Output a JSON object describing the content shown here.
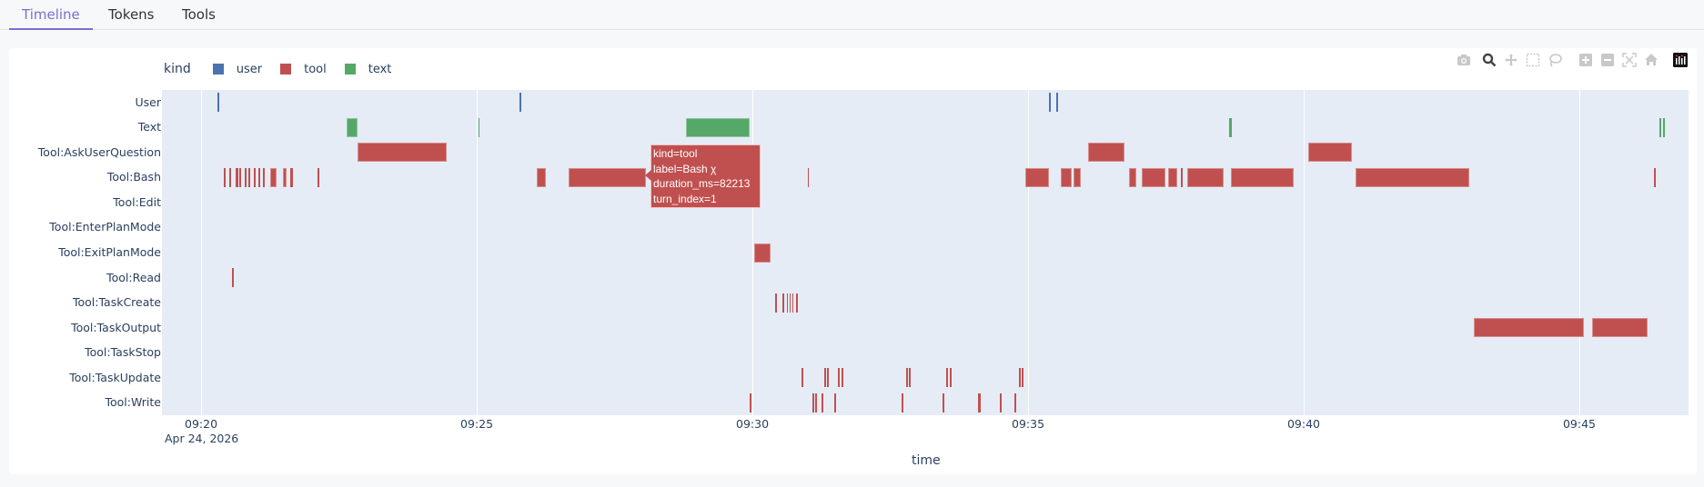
{
  "tabs": [
    {
      "label": "Timeline",
      "active": true
    },
    {
      "label": "Tokens",
      "active": false
    },
    {
      "label": "Tools",
      "active": false
    }
  ],
  "legend": {
    "title": "kind",
    "items": [
      {
        "label": "user",
        "color": "#4c72b0"
      },
      {
        "label": "tool",
        "color": "#c0504f"
      },
      {
        "label": "text",
        "color": "#55a868"
      }
    ]
  },
  "modebar": [
    "camera-icon",
    "zoom-icon",
    "pan-icon",
    "box-select-icon",
    "lasso-icon",
    "zoom-in-icon",
    "zoom-out-icon",
    "autoscale-icon",
    "reset-axes-icon",
    "plotly-logo-icon"
  ],
  "tooltip": {
    "lines": [
      "kind=tool",
      "label=Bash χ",
      "duration_ms=82213",
      "turn_index=1"
    ]
  },
  "chart_data": {
    "type": "timeline",
    "title": "",
    "xlabel": "time",
    "ylabel": "",
    "x_range_minutes_from_0920": [
      -0.71,
      26.98
    ],
    "x_ticks": [
      {
        "label": "09:20",
        "min": 0
      },
      {
        "label": "09:25",
        "min": 5
      },
      {
        "label": "09:30",
        "min": 10
      },
      {
        "label": "09:35",
        "min": 15
      },
      {
        "label": "09:40",
        "min": 20
      },
      {
        "label": "09:45",
        "min": 25
      }
    ],
    "x_date_label": "Apr 24, 2026",
    "categories": [
      "User",
      "Text",
      "Tool:AskUserQuestion",
      "Tool:Bash",
      "Tool:Edit",
      "Tool:EnterPlanMode",
      "Tool:ExitPlanMode",
      "Tool:Read",
      "Tool:TaskCreate",
      "Tool:TaskOutput",
      "Tool:TaskStop",
      "Tool:TaskUpdate",
      "Tool:Write"
    ],
    "series": [
      {
        "name": "user",
        "color": "#4c72b0",
        "rows": {
          "User": [
            [
              0.3,
              0.33
            ],
            [
              5.78,
              5.81
            ],
            [
              15.38,
              15.41
            ],
            [
              15.51,
              15.54
            ]
          ]
        }
      },
      {
        "name": "text",
        "color": "#55a868",
        "rows": {
          "Text": [
            [
              2.64,
              2.84
            ],
            [
              5.03,
              5.05
            ],
            [
              8.8,
              9.95
            ],
            [
              18.65,
              18.7
            ],
            [
              26.45,
              26.48
            ],
            [
              26.52,
              26.55
            ]
          ]
        }
      },
      {
        "name": "tool",
        "color": "#c0504f",
        "rows": {
          "Tool:AskUserQuestion": [
            [
              2.84,
              4.46
            ],
            [
              16.09,
              16.75
            ],
            [
              20.08,
              20.87
            ]
          ],
          "Tool:Bash": [
            [
              0.41,
              0.44
            ],
            [
              0.51,
              0.54
            ],
            [
              0.62,
              0.68
            ],
            [
              0.69,
              0.72
            ],
            [
              0.79,
              0.82
            ],
            [
              0.86,
              0.89
            ],
            [
              0.96,
              0.99
            ],
            [
              1.04,
              1.07
            ],
            [
              1.12,
              1.15
            ],
            [
              1.25,
              1.37
            ],
            [
              1.48,
              1.55
            ],
            [
              1.62,
              1.66
            ],
            [
              2.11,
              2.14
            ],
            [
              6.09,
              6.25
            ],
            [
              6.67,
              8.07
            ],
            [
              11.0,
              11.03
            ],
            [
              14.95,
              15.38
            ],
            [
              15.6,
              15.79
            ],
            [
              15.82,
              15.96
            ],
            [
              16.83,
              16.96
            ],
            [
              17.06,
              17.49
            ],
            [
              17.54,
              17.7
            ],
            [
              17.77,
              17.8
            ],
            [
              17.88,
              18.55
            ],
            [
              18.68,
              19.82
            ],
            [
              20.94,
              23.0
            ],
            [
              26.36,
              26.39
            ]
          ],
          "Tool:ExitPlanMode": [
            [
              10.03,
              10.33
            ]
          ],
          "Tool:Read": [
            [
              0.56,
              0.59
            ]
          ],
          "Tool:TaskCreate": [
            [
              10.41,
              10.44
            ],
            [
              10.54,
              10.57
            ],
            [
              10.62,
              10.65
            ],
            [
              10.67,
              10.7
            ],
            [
              10.72,
              10.75
            ],
            [
              10.79,
              10.82
            ]
          ],
          "Tool:TaskOutput": [
            [
              23.08,
              25.08
            ],
            [
              25.23,
              26.24
            ]
          ],
          "Tool:TaskUpdate": [
            [
              10.89,
              10.92
            ],
            [
              11.3,
              11.33
            ],
            [
              11.35,
              11.38
            ],
            [
              11.55,
              11.58
            ],
            [
              11.62,
              11.65
            ],
            [
              12.79,
              12.82
            ],
            [
              12.84,
              12.87
            ],
            [
              13.51,
              13.54
            ],
            [
              13.58,
              13.61
            ],
            [
              14.83,
              14.86
            ],
            [
              14.88,
              14.91
            ]
          ],
          "Tool:Write": [
            [
              9.95,
              9.98
            ],
            [
              11.09,
              11.12
            ],
            [
              11.14,
              11.17
            ],
            [
              11.25,
              11.28
            ],
            [
              11.49,
              11.52
            ],
            [
              12.71,
              12.74
            ],
            [
              13.45,
              13.48
            ],
            [
              14.1,
              14.15
            ],
            [
              14.49,
              14.52
            ],
            [
              14.75,
              14.78
            ]
          ]
        }
      }
    ],
    "legend_position": "top-left horizontal",
    "grid": true
  }
}
